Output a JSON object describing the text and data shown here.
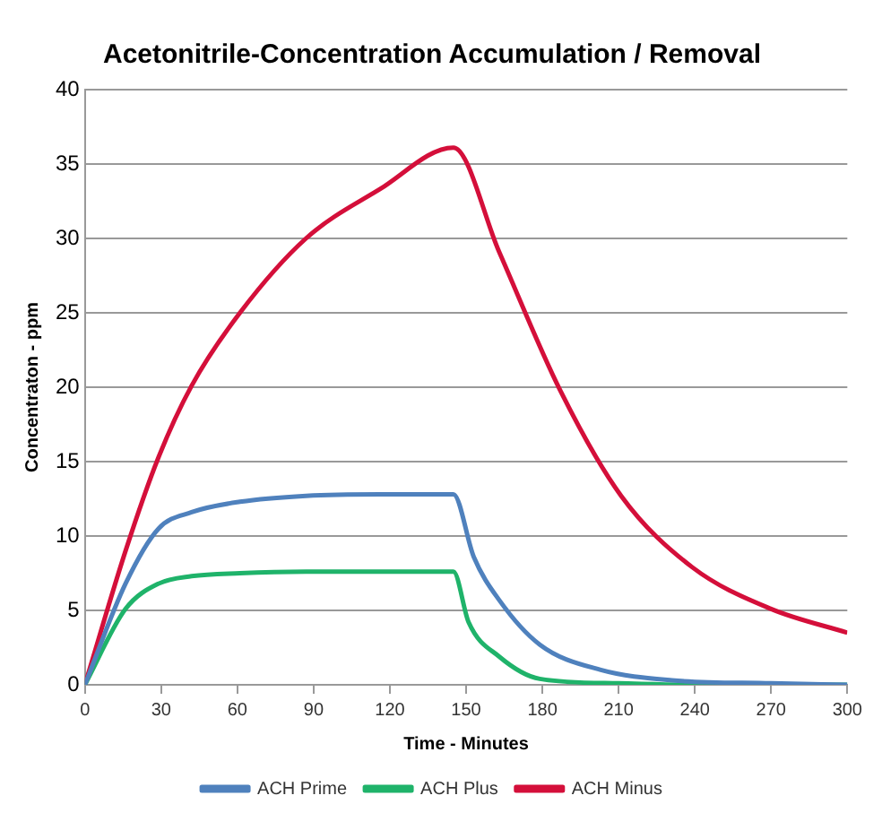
{
  "chart_data": {
    "type": "line",
    "title": "Acetonitrile-Concentration Accumulation / Removal",
    "xlabel": "Time - Minutes",
    "ylabel": "Concentraton - ppm",
    "xlim": [
      0,
      300
    ],
    "xticks": [
      0,
      30,
      60,
      90,
      120,
      150,
      180,
      210,
      240,
      270,
      300
    ],
    "ylim": [
      0,
      40
    ],
    "yticks": [
      0,
      5,
      10,
      15,
      20,
      25,
      30,
      35,
      40
    ],
    "grid": "y",
    "legend": "bottom",
    "marker": "none",
    "line_style": "solid",
    "series": [
      {
        "name": "ACH Prime",
        "color": "#4f81bd",
        "x": [
          0,
          16,
          29,
          42,
          61,
          87,
          116,
          145,
          153,
          163,
          179,
          203,
          231,
          270,
          300
        ],
        "values": [
          0,
          6.8,
          10.5,
          11.6,
          12.3,
          12.7,
          12.8,
          12.8,
          8.6,
          5.7,
          2.7,
          1,
          0.3,
          0.1,
          0
        ]
      },
      {
        "name": "ACH Plus",
        "color": "#1fb36a",
        "x": [
          0,
          16,
          29,
          42,
          61,
          87,
          116,
          145,
          151,
          163,
          179,
          210,
          240,
          270,
          300
        ],
        "values": [
          0,
          5.1,
          6.8,
          7.3,
          7.5,
          7.6,
          7.6,
          7.6,
          4.2,
          1.9,
          0.4,
          0.1,
          0,
          0,
          0
        ]
      },
      {
        "name": "ACH Minus",
        "color": "#d40f3a",
        "x": [
          0,
          16,
          29,
          42,
          61,
          87,
          116,
          145,
          163,
          187,
          211,
          239,
          270,
          300
        ],
        "values": [
          0,
          9,
          15.3,
          20.1,
          25,
          30,
          33.3,
          36.1,
          29.1,
          19.8,
          12.7,
          7.9,
          5.1,
          3.5
        ]
      }
    ]
  }
}
